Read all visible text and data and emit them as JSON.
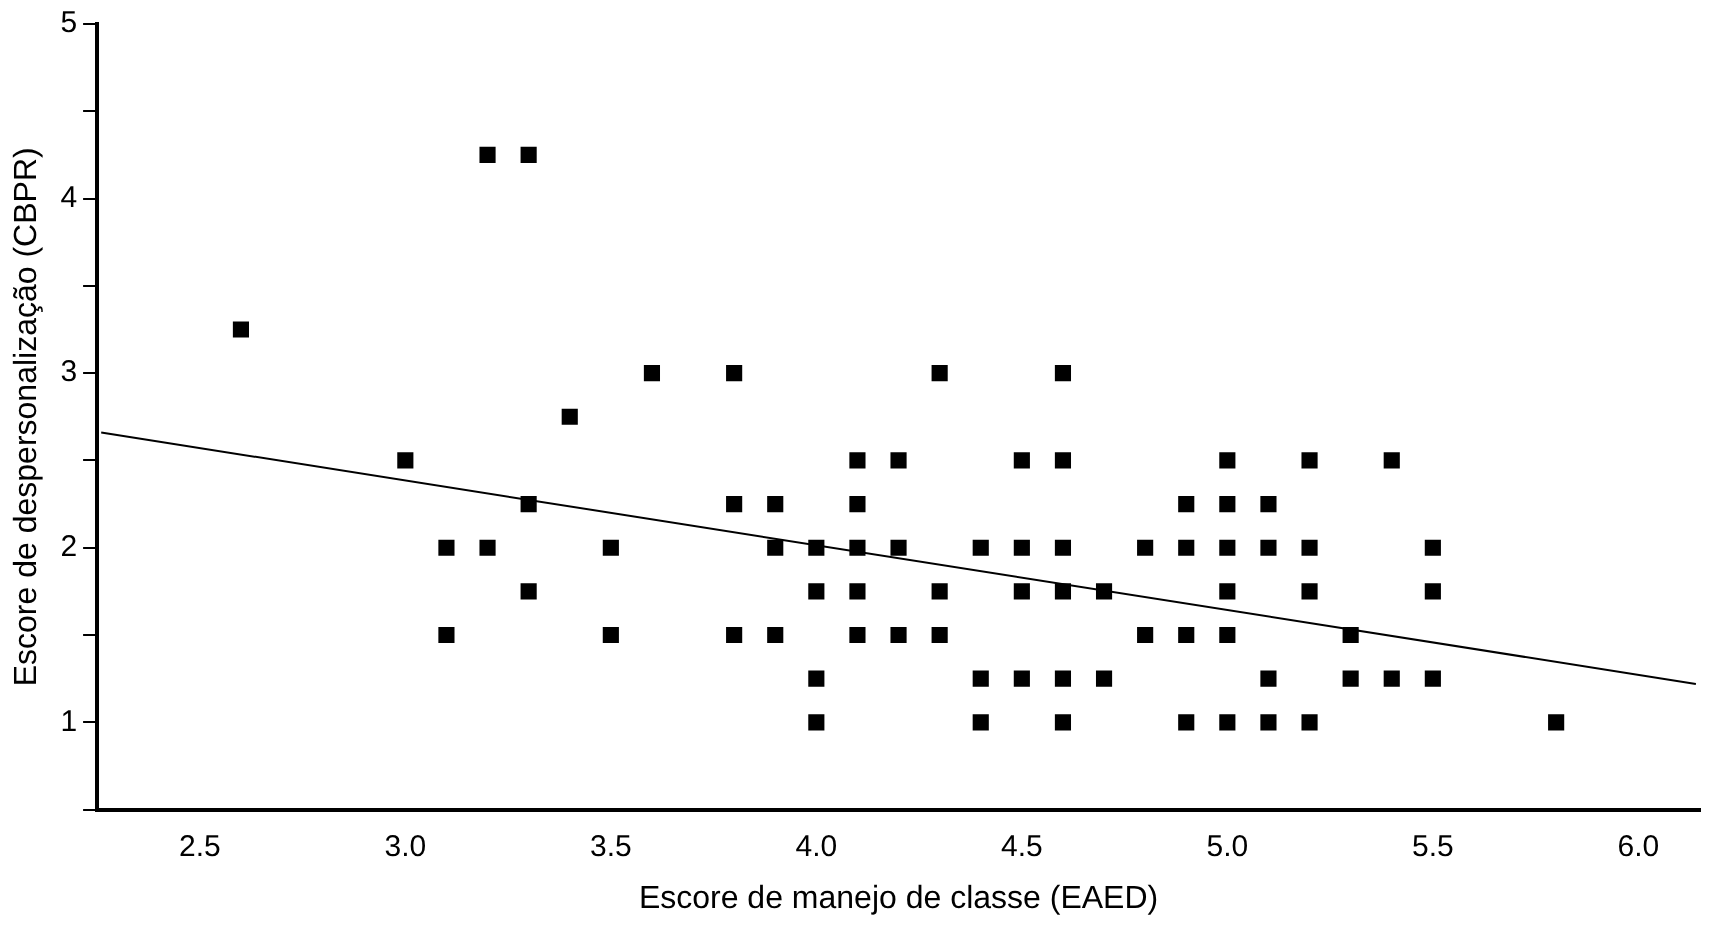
{
  "chart_data": {
    "type": "scatter",
    "xlabel": "Escore de manejo de classe (EAED)",
    "ylabel": "Escore de despersonalização (CBPR)",
    "xlim": [
      2.25,
      6.15
    ],
    "xticks": [
      2.5,
      {
        "value": 3,
        "label": "3.0"
      },
      3.5,
      {
        "value": 4,
        "label": "4.0"
      },
      4.5,
      {
        "value": 5,
        "label": "5.0"
      },
      5.5,
      {
        "value": 6,
        "label": "6.0"
      }
    ],
    "ylim": [
      0.5,
      5
    ],
    "yticks": [
      {
        "value": 0.5,
        "label": null
      },
      1,
      {
        "value": 1.5,
        "label": null
      },
      2,
      {
        "value": 2.5,
        "label": null
      },
      3,
      {
        "value": 3.5,
        "label": null
      },
      4,
      {
        "value": 4.5,
        "label": null
      },
      5
    ],
    "marker": "square",
    "grid": false,
    "legend": false,
    "series": [
      {
        "type": "scatter",
        "color": "#000000",
        "x": [
          2.6,
          3.0,
          3.1,
          3.1,
          3.2,
          3.2,
          3.3,
          3.3,
          3.3,
          3.4,
          3.5,
          3.5,
          3.6,
          3.8,
          3.8,
          3.8,
          3.9,
          3.9,
          3.9,
          4.0,
          4.0,
          4.0,
          4.0,
          4.1,
          4.1,
          4.1,
          4.1,
          4.1,
          4.2,
          4.2,
          4.2,
          4.3,
          4.3,
          4.3,
          4.4,
          4.4,
          4.4,
          4.5,
          4.5,
          4.5,
          4.5,
          4.6,
          4.6,
          4.6,
          4.6,
          4.6,
          4.6,
          4.7,
          4.7,
          4.8,
          4.8,
          4.9,
          4.9,
          4.9,
          4.9,
          5.0,
          5.0,
          5.0,
          5.0,
          5.0,
          5.0,
          5.1,
          5.1,
          5.1,
          5.1,
          5.2,
          5.2,
          5.2,
          5.2,
          5.3,
          5.3,
          5.4,
          5.4,
          5.5,
          5.5,
          5.5,
          5.8
        ],
        "values": [
          3.25,
          2.5,
          2,
          1.5,
          4.25,
          2,
          4.25,
          2.25,
          1.75,
          2.75,
          2,
          1.5,
          3,
          3,
          2.25,
          1.5,
          2.25,
          2,
          1.5,
          2,
          1.75,
          1.25,
          1,
          2.5,
          2.25,
          2,
          1.75,
          1.5,
          2.5,
          2,
          1.5,
          3,
          1.75,
          1.5,
          2,
          1.25,
          1,
          2.5,
          2,
          1.75,
          1.25,
          3,
          2.5,
          2,
          1.75,
          1.25,
          1,
          1.75,
          1.25,
          2,
          1.5,
          2.25,
          2,
          1.5,
          1,
          2.5,
          2.25,
          2,
          1.75,
          1.5,
          1,
          2.25,
          2,
          1.25,
          1,
          2.5,
          2,
          1.75,
          1,
          1.5,
          1.25,
          2.5,
          1.25,
          2,
          1.75,
          1.25,
          1
        ]
      },
      {
        "type": "line",
        "color": "#000000",
        "x": [
          2.26,
          6.14
        ],
        "values": [
          2.66,
          1.22
        ],
        "marker": "none"
      }
    ]
  }
}
